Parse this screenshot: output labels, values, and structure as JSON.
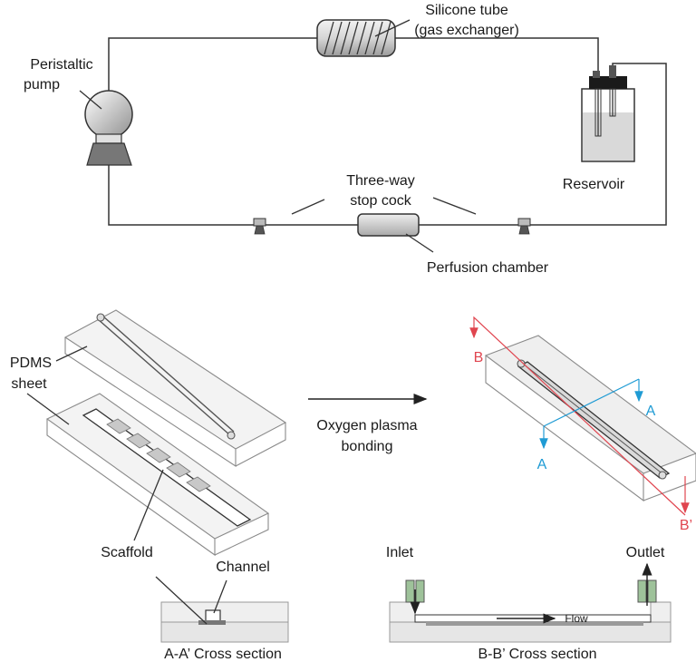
{
  "colors": {
    "line": "#333333",
    "section_a": "#5b4fa6",
    "section_b": "#e0454f",
    "cut_a": "#1f9bd4",
    "cut_b": "#e0454f",
    "port": "#9ec29a"
  },
  "circuit": {
    "silicone_tube": "Silicone tube",
    "gas_exchanger": "(gas exchanger)",
    "peristaltic": "Peristaltic",
    "pump": "pump",
    "reservoir": "Reservoir",
    "three_way": "Three-way",
    "stop_cock": "stop cock",
    "perfusion_chamber": "Perfusion chamber"
  },
  "assembly": {
    "pdms": "PDMS",
    "sheet": "sheet",
    "oxygen_plasma": "Oxygen plasma",
    "bonding": "bonding",
    "scaffold": "Scaffold",
    "channel": "Channel",
    "inlet": "Inlet",
    "outlet": "Outlet",
    "flow": "Flow",
    "cut_b": "B",
    "cut_b_prime": "B’",
    "cut_a_top": "A",
    "cut_a_bottom": "A",
    "section_aa": "A-A’ Cross section",
    "section_bb": "B-B’ Cross section"
  }
}
